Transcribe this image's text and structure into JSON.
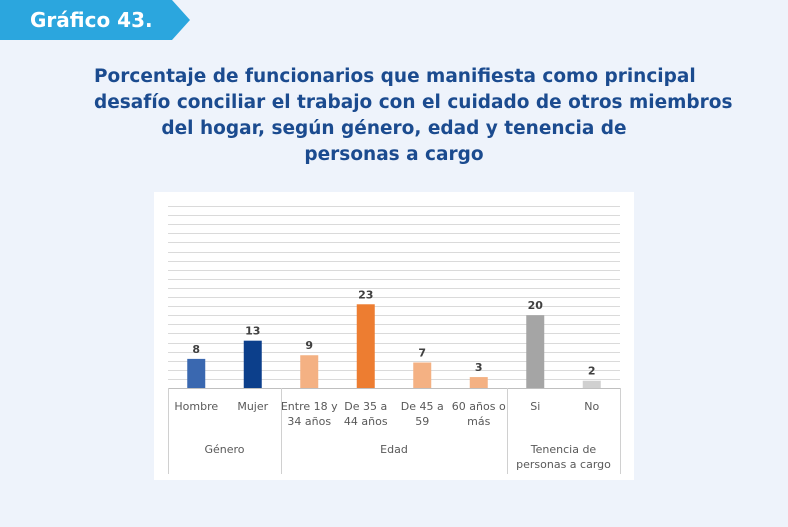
{
  "badge": {
    "label": "Gráfico 43."
  },
  "title_lines": [
    "Porcentaje de funcionarios que manifiesta como principal",
    "desafío conciliar el trabajo con el cuidado de otros miembros",
    "del hogar, según género, edad y tenencia de",
    "personas a cargo"
  ],
  "chart_data": {
    "type": "bar",
    "ylim": [
      0,
      50
    ],
    "grid": true,
    "categories": [
      {
        "label": [
          "Hombre"
        ],
        "value": 8,
        "color": "#3a68b0"
      },
      {
        "label": [
          "Mujer"
        ],
        "value": 13,
        "color": "#0c3f8b"
      },
      {
        "label": [
          "Entre 18 y",
          "34 años"
        ],
        "value": 9,
        "color": "#f4b183"
      },
      {
        "label": [
          "De 35 a",
          "44 años"
        ],
        "value": 23,
        "color": "#ed7d31"
      },
      {
        "label": [
          "De 45 a",
          "59"
        ],
        "value": 7,
        "color": "#f4b183"
      },
      {
        "label": [
          "60 años o",
          "más"
        ],
        "value": 3,
        "color": "#f4b183"
      },
      {
        "label": [
          "Si"
        ],
        "value": 20,
        "color": "#a5a5a5"
      },
      {
        "label": [
          "No"
        ],
        "value": 2,
        "color": "#d0d0d0"
      }
    ],
    "groups": [
      {
        "label": [
          "Género"
        ],
        "start": 0,
        "end": 2
      },
      {
        "label": [
          "Edad"
        ],
        "start": 2,
        "end": 6
      },
      {
        "label": [
          "Tenencia de",
          "personas a cargo"
        ],
        "start": 6,
        "end": 8
      }
    ]
  }
}
